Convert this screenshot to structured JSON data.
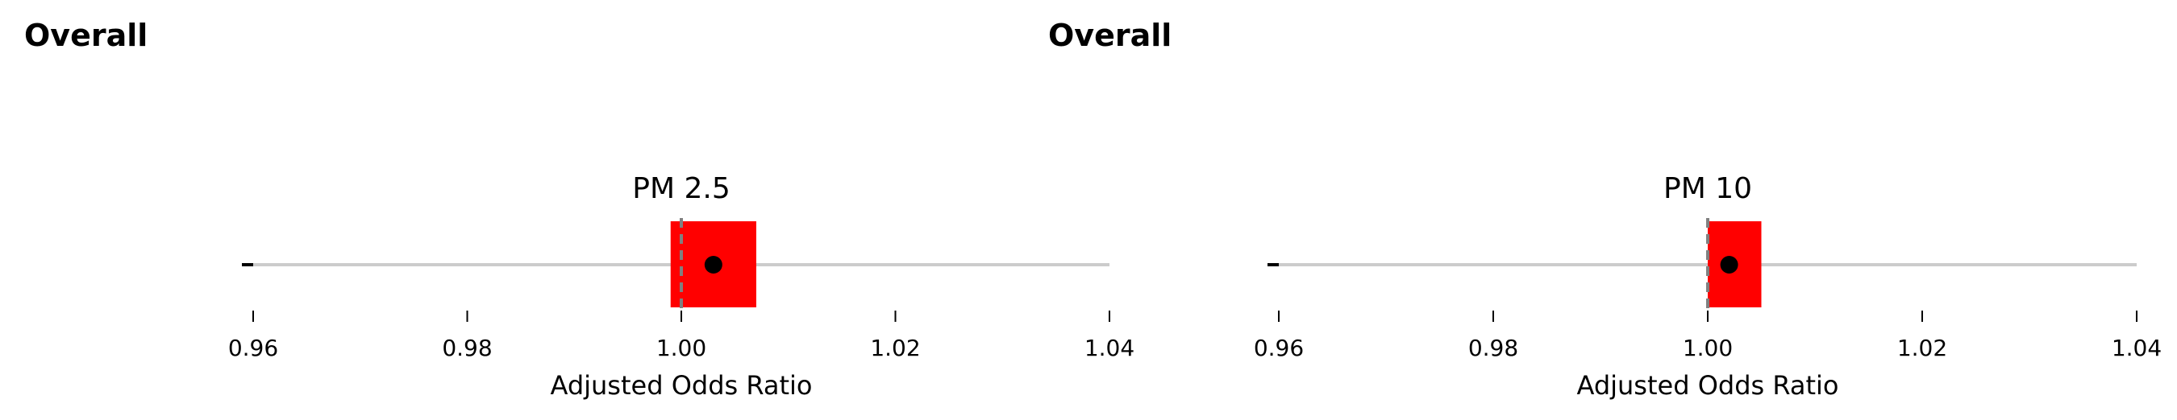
{
  "chart_data": [
    {
      "type": "forest",
      "section_title": "Overall",
      "title": "PM 2.5",
      "xlabel": "Adjusted Odds Ratio",
      "xlim": [
        0.96,
        1.04
      ],
      "xticks": [
        "0.96",
        "0.98",
        "1.00",
        "1.02",
        "1.04"
      ],
      "reference_line": 1.0,
      "estimate": 1.003,
      "ci_lower": 0.999,
      "ci_upper": 1.007,
      "line_range": [
        0.96,
        1.04
      ],
      "colors": {
        "ci_box": "#ff0000",
        "point": "#000000",
        "range_line": "#cccccc",
        "reference": "#808080"
      }
    },
    {
      "type": "forest",
      "section_title": "Overall",
      "title": "PM 10",
      "xlabel": "Adjusted Odds Ratio",
      "xlim": [
        0.96,
        1.04
      ],
      "xticks": [
        "0.96",
        "0.98",
        "1.00",
        "1.02",
        "1.04"
      ],
      "reference_line": 1.0,
      "estimate": 1.002,
      "ci_lower": 1.0,
      "ci_upper": 1.005,
      "line_range": [
        0.96,
        1.04
      ],
      "colors": {
        "ci_box": "#ff0000",
        "point": "#000000",
        "range_line": "#cccccc",
        "reference": "#808080"
      }
    }
  ]
}
